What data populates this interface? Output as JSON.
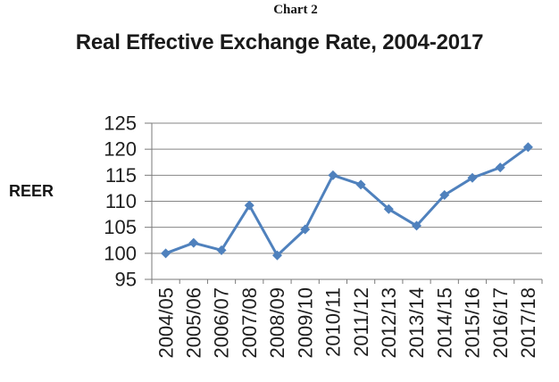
{
  "page": {
    "chart_label": "Chart 2"
  },
  "chart_data": {
    "type": "line",
    "title": "Real Effective Exchange Rate, 2004-2017",
    "ylabel": "REER",
    "xlabel": "",
    "categories": [
      "2004/05",
      "2005/06",
      "2006/07",
      "2007/08",
      "2008/09",
      "2009/10",
      "2010/11",
      "2011/12",
      "2012/13",
      "2013/14",
      "2014/15",
      "2015/16",
      "2016/17",
      "2017/18"
    ],
    "series": [
      {
        "name": "REER",
        "values": [
          100,
          102,
          100.6,
          109.2,
          99.6,
          104.6,
          115,
          113.2,
          108.5,
          105.3,
          111.2,
          114.5,
          116.5,
          120.4
        ]
      }
    ],
    "y_ticks": [
      95,
      100,
      105,
      110,
      115,
      120,
      125
    ],
    "ylim": [
      95,
      125
    ],
    "grid": "horizontal-on",
    "legend": "none",
    "marker": "diamond",
    "colors": {
      "series": "#4F81BD",
      "gridline": "#858585",
      "axis": "#7a7a7a",
      "tick_text": "#1f1f1f"
    }
  }
}
